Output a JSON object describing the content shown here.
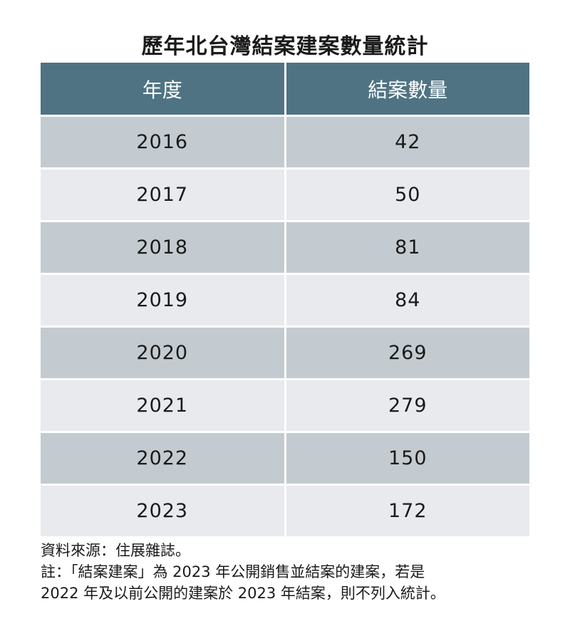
{
  "title": "歷年北台灣結案建案數量統計",
  "chart_data": {
    "type": "table",
    "title": "歷年北台灣結案建案數量統計",
    "columns": [
      "年度",
      "結案數量"
    ],
    "rows": [
      [
        "2016",
        "42"
      ],
      [
        "2017",
        "50"
      ],
      [
        "2018",
        "81"
      ],
      [
        "2019",
        "84"
      ],
      [
        "2020",
        "269"
      ],
      [
        "2021",
        "279"
      ],
      [
        "2022",
        "150"
      ],
      [
        "2023",
        "172"
      ]
    ]
  },
  "notes": [
    "資料來源：住展雜誌。",
    "註：「結案建案」為 2023 年公開銷售並結案的建案，若是",
    "2022 年及以前公開的建案於 2023 年結案，則不列入統計。"
  ],
  "colors": {
    "header_bg": "#4f7383",
    "row_dark": "#c4cbd0",
    "row_light": "#e8eaee"
  }
}
